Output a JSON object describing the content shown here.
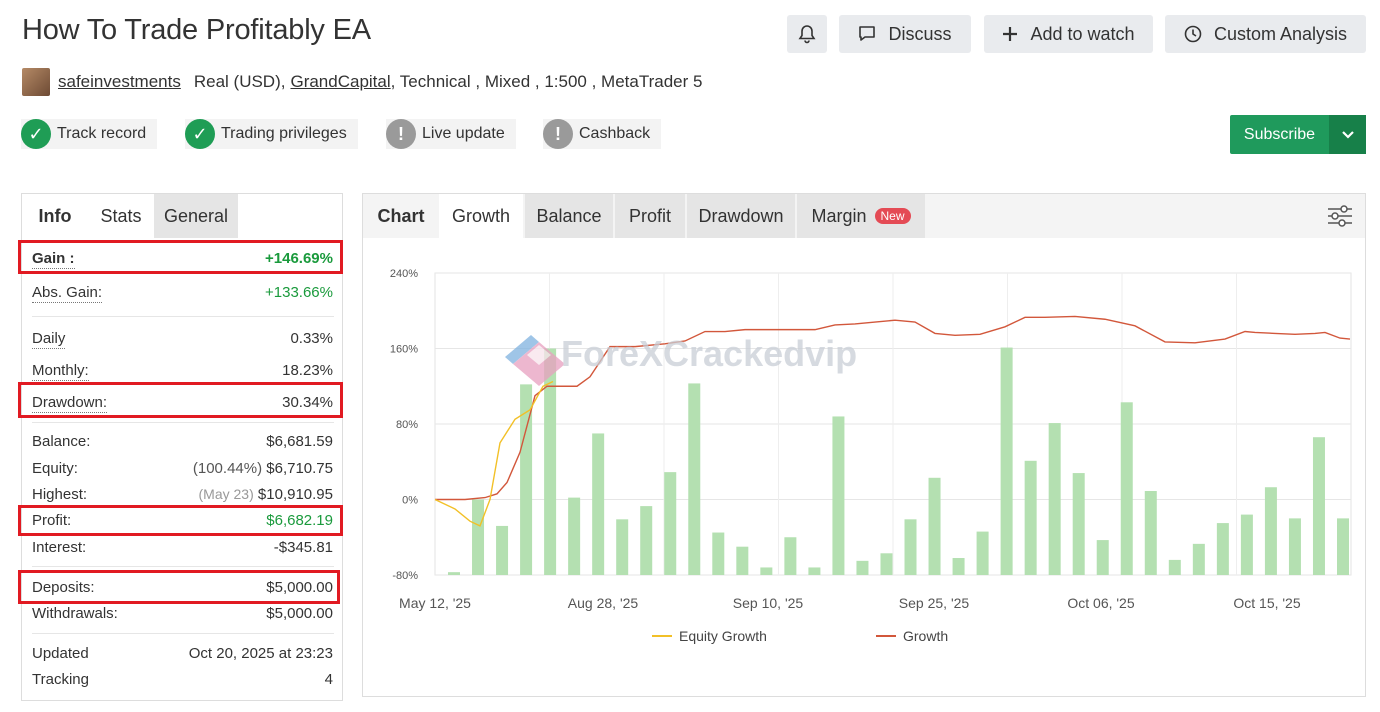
{
  "header": {
    "title": "How To Trade Profitably EA",
    "discuss_label": "Discuss",
    "watch_label": "Add to watch",
    "analysis_label": "Custom Analysis"
  },
  "meta": {
    "author": "safeinvestments",
    "account_type": "Real (USD),",
    "broker": "GrandCapital",
    "rest": ", Technical , Mixed , 1:500 , MetaTrader 5"
  },
  "badges": {
    "track_record": "Track record",
    "trading_privileges": "Trading privileges",
    "live_update": "Live update",
    "cashback": "Cashback"
  },
  "subscribe_label": "Subscribe",
  "info": {
    "tabs": [
      "Info",
      "Stats",
      "General"
    ],
    "gain": {
      "label": "Gain :",
      "value": "+146.69%"
    },
    "abs_gain": {
      "label": "Abs. Gain:",
      "value": "+133.66%"
    },
    "daily": {
      "label": "Daily",
      "value": "0.33%"
    },
    "monthly": {
      "label": "Monthly:",
      "value": "18.23%"
    },
    "drawdown": {
      "label": "Drawdown:",
      "value": "30.34%"
    },
    "balance": {
      "label": "Balance:",
      "value": "$6,681.59"
    },
    "equity": {
      "label": "Equity:",
      "pct": "(100.44%)",
      "value": "$6,710.75"
    },
    "highest": {
      "label": "Highest:",
      "date": "(May 23)",
      "value": "$10,910.95"
    },
    "profit": {
      "label": "Profit:",
      "value": "$6,682.19"
    },
    "interest": {
      "label": "Interest:",
      "value": "-$345.81"
    },
    "deposits": {
      "label": "Deposits:",
      "value": "$5,000.00"
    },
    "withdrawals": {
      "label": "Withdrawals:",
      "value": "$5,000.00"
    },
    "updated": {
      "label": "Updated",
      "value": "Oct 20, 2025 at 23:23"
    },
    "tracking": {
      "label": "Tracking",
      "value": "4"
    }
  },
  "chart_tabs": {
    "chart": "Chart",
    "growth": "Growth",
    "balance": "Balance",
    "profit": "Profit",
    "drawdown": "Drawdown",
    "margin": "Margin",
    "new_badge": "New"
  },
  "watermark": "ForeXCrackedvip",
  "colors": {
    "accent_green": "#1f9a5c",
    "growth_line": "#d2573b",
    "equity_line": "#f2c027",
    "bars": "#b4e0b1",
    "highlight_box": "#e11a22"
  },
  "chart_data": {
    "type": "bar",
    "xlabels": [
      "May 12, '25",
      "Aug 28, '25",
      "Sep 10, '25",
      "Sep 25, '25",
      "Oct 06, '25",
      "Oct 15, '25"
    ],
    "ylim": [
      -80,
      240
    ],
    "yticks": [
      "240%",
      "160%",
      "80%",
      "0%",
      "-80%"
    ],
    "ytick_values": [
      240,
      160,
      80,
      0,
      -80
    ],
    "legend": [
      "Equity Growth",
      "Growth"
    ],
    "legend_position": "bottom",
    "grid": true,
    "bars": [
      -77,
      0,
      -28,
      122,
      160,
      2,
      70,
      -21,
      -7,
      29,
      123,
      -35,
      -50,
      -72,
      -40,
      -72,
      88,
      -65,
      -57,
      -21,
      23,
      -62,
      -34,
      161,
      41,
      81,
      28,
      -43,
      103,
      9,
      -64,
      -47,
      -25,
      -16,
      13,
      -20,
      66,
      -20
    ],
    "series": [
      {
        "name": "Growth",
        "x": [
          0,
          15,
          30,
          50,
          62,
          72,
          85,
          100,
          112,
          130,
          142,
          155,
          175,
          200,
          230,
          250,
          270,
          290,
          310,
          335,
          360,
          380,
          400,
          420,
          440,
          460,
          480,
          500,
          520,
          545,
          570,
          590,
          610,
          640,
          670,
          700,
          730,
          760,
          790,
          810,
          820,
          840,
          860,
          880,
          890,
          905,
          915
        ],
        "y": [
          0,
          0,
          0,
          2,
          6,
          18,
          50,
          110,
          120,
          120,
          120,
          130,
          162,
          162,
          165,
          168,
          178,
          178,
          180,
          180,
          180,
          180,
          185,
          186,
          188,
          190,
          188,
          176,
          174,
          175,
          183,
          193,
          193,
          194,
          191,
          184,
          167,
          166,
          170,
          178,
          177,
          176,
          175,
          176,
          177,
          171,
          170
        ]
      },
      {
        "name": "Equity Growth",
        "x": [
          0,
          20,
          35,
          45,
          55,
          65,
          80,
          95,
          108,
          118
        ],
        "y": [
          0,
          -10,
          -23,
          -28,
          0,
          60,
          85,
          95,
          120,
          125
        ]
      }
    ]
  }
}
